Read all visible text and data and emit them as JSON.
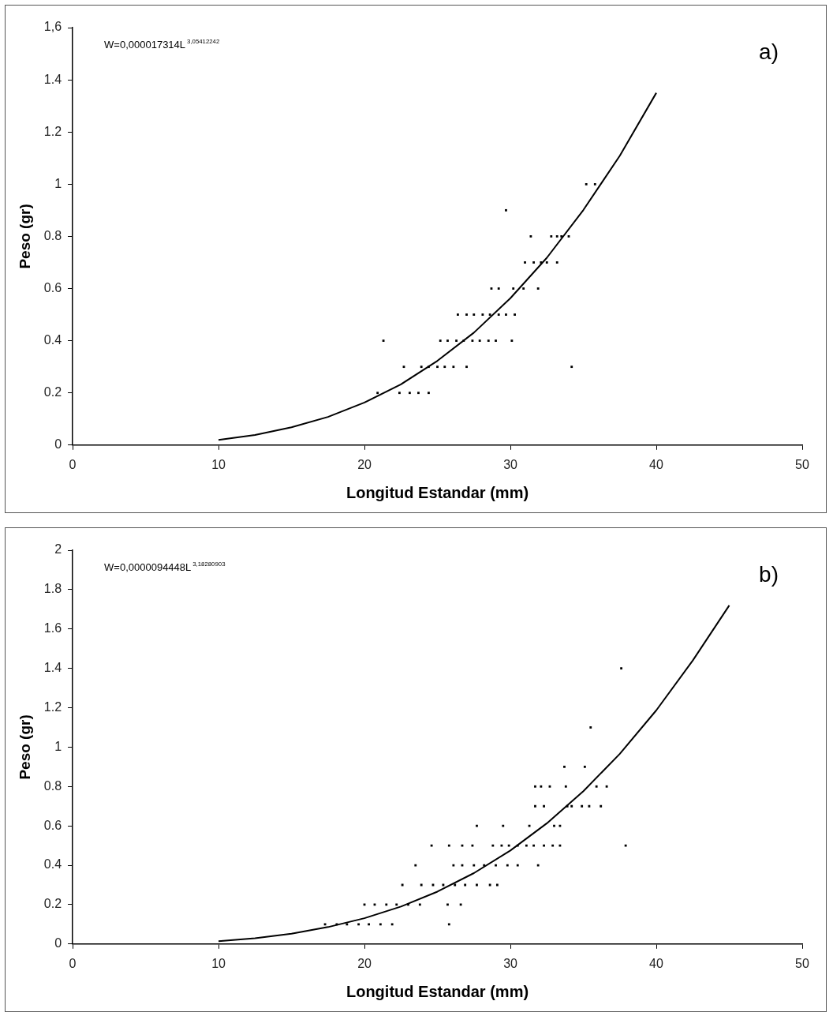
{
  "chart_data": [
    {
      "type": "scatter",
      "xlabel": "Longitud Estandar (mm)",
      "ylabel": "Peso (gr)",
      "annotations": [
        "W=0,000017314L$^{3,05412242}$",
        "a)"
      ],
      "xlim": [
        0,
        50
      ],
      "xticks": [
        0,
        10,
        20,
        30,
        40,
        50
      ],
      "ylim": [
        0,
        1.6
      ],
      "yticks": [
        0,
        0.2,
        0.4,
        0.6,
        0.8,
        1,
        1.2,
        1.4,
        {
          "value": 1.6,
          "label": "1,6"
        }
      ],
      "grid": false,
      "legend": false,
      "series": [
        {
          "type": "scatter",
          "color": "#000000",
          "marker": "square",
          "x": [
            35.2,
            35.8,
            29.7,
            31.4,
            32.8,
            33.2,
            33.5,
            34.0,
            31.0,
            31.6,
            32.1,
            32.5,
            33.2,
            28.7,
            29.2,
            30.2,
            30.9,
            31.9,
            26.4,
            27.0,
            27.5,
            28.1,
            28.6,
            29.2,
            29.7,
            30.3,
            21.3,
            25.2,
            25.7,
            26.3,
            26.8,
            27.4,
            27.9,
            28.5,
            29.0,
            30.1,
            22.7,
            23.9,
            24.4,
            25.0,
            25.5,
            26.1,
            27.0,
            34.2,
            20.9,
            22.4,
            23.1,
            23.7,
            24.4
          ],
          "values": [
            1.0,
            1.0,
            0.9,
            0.8,
            0.8,
            0.8,
            0.8,
            0.8,
            0.7,
            0.7,
            0.7,
            0.7,
            0.7,
            0.6,
            0.6,
            0.6,
            0.6,
            0.6,
            0.5,
            0.5,
            0.5,
            0.5,
            0.5,
            0.5,
            0.5,
            0.5,
            0.4,
            0.4,
            0.4,
            0.4,
            0.4,
            0.4,
            0.4,
            0.4,
            0.4,
            0.4,
            0.3,
            0.3,
            0.3,
            0.3,
            0.3,
            0.3,
            0.3,
            0.3,
            0.2,
            0.2,
            0.2,
            0.2,
            0.2
          ]
        },
        {
          "type": "line",
          "color": "#000000",
          "marker": "none",
          "x": [
            10,
            12.5,
            15,
            17.5,
            20,
            22.5,
            25,
            27.5,
            30,
            32.5,
            35,
            37.5,
            40
          ],
          "values": [
            0.02,
            0.039,
            0.068,
            0.108,
            0.163,
            0.233,
            0.323,
            0.431,
            0.563,
            0.718,
            0.901,
            1.109,
            1.35
          ]
        }
      ]
    },
    {
      "type": "scatter",
      "xlabel": "Longitud Estandar (mm)",
      "ylabel": "Peso (gr)",
      "annotations": [
        "W=0,0000094448L$^{3,18280903}$",
        "b)"
      ],
      "xlim": [
        0,
        50
      ],
      "xticks": [
        0,
        10,
        20,
        30,
        40,
        50
      ],
      "ylim": [
        0,
        2
      ],
      "yticks": [
        0,
        0.2,
        0.4,
        0.6,
        0.8,
        1,
        1.2,
        1.4,
        1.6,
        1.8,
        2
      ],
      "grid": false,
      "legend": false,
      "series": [
        {
          "type": "scatter",
          "color": "#000000",
          "marker": "square",
          "x": [
            37.6,
            35.5,
            33.7,
            35.1,
            31.7,
            32.1,
            32.7,
            33.8,
            35.9,
            36.6,
            31.7,
            32.3,
            33.9,
            34.2,
            34.9,
            35.4,
            36.2,
            27.7,
            29.5,
            31.3,
            33.0,
            33.4,
            24.6,
            25.8,
            26.7,
            27.4,
            28.8,
            29.4,
            29.9,
            30.5,
            31.1,
            31.6,
            32.3,
            32.9,
            33.4,
            37.9,
            23.5,
            26.1,
            26.7,
            27.5,
            28.2,
            29.0,
            29.8,
            30.5,
            31.9,
            22.6,
            23.9,
            24.7,
            25.4,
            26.2,
            26.9,
            27.7,
            28.6,
            29.1,
            20.0,
            20.7,
            21.5,
            22.2,
            23.0,
            23.8,
            25.7,
            26.6,
            17.3,
            18.1,
            18.8,
            19.6,
            20.3,
            21.1,
            21.9,
            25.8
          ],
          "values": [
            1.4,
            1.1,
            0.9,
            0.9,
            0.8,
            0.8,
            0.8,
            0.8,
            0.8,
            0.8,
            0.7,
            0.7,
            0.7,
            0.7,
            0.7,
            0.7,
            0.7,
            0.6,
            0.6,
            0.6,
            0.6,
            0.6,
            0.5,
            0.5,
            0.5,
            0.5,
            0.5,
            0.5,
            0.5,
            0.5,
            0.5,
            0.5,
            0.5,
            0.5,
            0.5,
            0.5,
            0.4,
            0.4,
            0.4,
            0.4,
            0.4,
            0.4,
            0.4,
            0.4,
            0.4,
            0.3,
            0.3,
            0.3,
            0.3,
            0.3,
            0.3,
            0.3,
            0.3,
            0.3,
            0.2,
            0.2,
            0.2,
            0.2,
            0.2,
            0.2,
            0.2,
            0.2,
            0.1,
            0.1,
            0.1,
            0.1,
            0.1,
            0.1,
            0.1,
            0.1
          ]
        },
        {
          "type": "line",
          "color": "#000000",
          "marker": "none",
          "x": [
            10,
            12.5,
            15,
            17.5,
            20,
            22.5,
            25,
            27.5,
            30,
            32.5,
            35,
            37.5,
            40,
            42.5,
            45
          ],
          "values": [
            0.014,
            0.029,
            0.052,
            0.086,
            0.131,
            0.19,
            0.266,
            0.36,
            0.475,
            0.613,
            0.776,
            0.966,
            1.187,
            1.44,
            1.72
          ]
        }
      ]
    }
  ]
}
